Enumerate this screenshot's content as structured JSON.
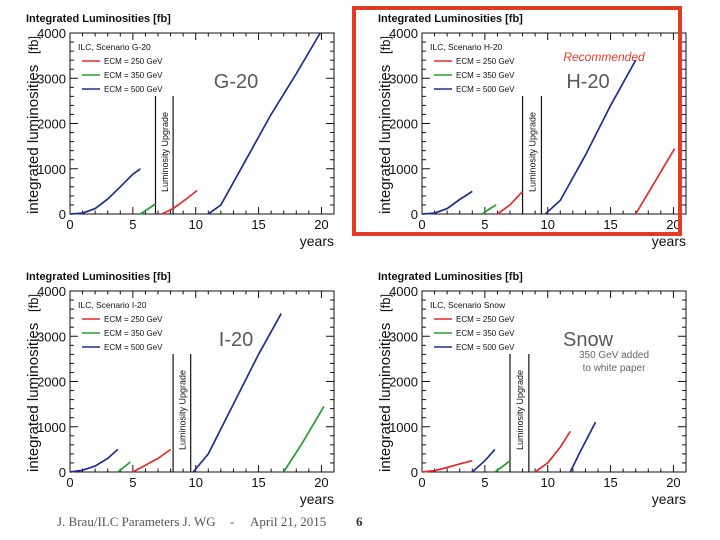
{
  "colors": {
    "ecm250": "#e8282a",
    "ecm350": "#22a12c",
    "ecm500": "#1f2f8f",
    "highlight": "#e33b24",
    "big_label": "#5a5a5a"
  },
  "footer": {
    "author": "J. Brau/ILC Parameters J. WG",
    "separator": "-",
    "date": "April 21, 2015",
    "page": "6"
  },
  "chart_data": [
    {
      "id": "g20",
      "type": "line",
      "title": "Integrated Luminosities  [fb]",
      "unit": "[fb]",
      "scenario": "ILC, Scenario G-20",
      "label": "G-20",
      "xlabel": "years",
      "ylabel": "integrated luminosities",
      "xlim": [
        0,
        21
      ],
      "ylim": [
        0,
        4000
      ],
      "xticks": [
        0,
        5,
        10,
        15,
        20
      ],
      "yticks": [
        0,
        1000,
        2000,
        3000,
        4000
      ],
      "upgrade_label": "Luminosity Upgrade",
      "upgrade_x": [
        6.8,
        8.2
      ],
      "legend": [
        "ECM = 250 GeV",
        "ECM = 350 GeV",
        "ECM = 500 GeV"
      ],
      "series": [
        {
          "name": "ECM = 500 GeV",
          "x": [
            0,
            1,
            2,
            3,
            4,
            5,
            5.6
          ],
          "y": [
            0,
            20,
            120,
            330,
            600,
            880,
            1000
          ]
        },
        {
          "name": "ECM = 350 GeV",
          "x": [
            5.6,
            6.2,
            6.8
          ],
          "y": [
            0,
            110,
            220
          ]
        },
        {
          "name": "ECM = 250 GeV",
          "x": [
            7.3,
            8.2,
            9.2,
            10.1
          ],
          "y": [
            0,
            120,
            320,
            520
          ]
        },
        {
          "name": "ECM = 500 GeV",
          "x": [
            11.0,
            12.0,
            14.0,
            16.0,
            18.0,
            19.9
          ],
          "y": [
            0,
            200,
            1200,
            2200,
            3100,
            4000
          ]
        }
      ]
    },
    {
      "id": "h20",
      "type": "line",
      "title": "Integrated Luminosities  [fb]",
      "unit": "[fb]",
      "scenario": "ILC, Scenario H-20",
      "label": "H-20",
      "annotation": "Recommended",
      "xlabel": "years",
      "ylabel": "integrated luminosities",
      "xlim": [
        0,
        21
      ],
      "ylim": [
        0,
        4000
      ],
      "xticks": [
        0,
        5,
        10,
        15,
        20
      ],
      "yticks": [
        0,
        1000,
        2000,
        3000,
        4000
      ],
      "upgrade_label": "Luminosity Upgrade",
      "upgrade_x": [
        8.0,
        9.5
      ],
      "legend": [
        "ECM = 250 GeV",
        "ECM = 350 GeV",
        "ECM = 500 GeV"
      ],
      "series": [
        {
          "name": "ECM = 500 GeV",
          "x": [
            0,
            1,
            2,
            3,
            4
          ],
          "y": [
            0,
            20,
            120,
            320,
            500
          ]
        },
        {
          "name": "ECM = 350 GeV",
          "x": [
            4.8,
            5.3,
            5.9
          ],
          "y": [
            0,
            100,
            200
          ]
        },
        {
          "name": "ECM = 250 GeV",
          "x": [
            6.0,
            7.0,
            8.0
          ],
          "y": [
            0,
            200,
            500
          ]
        },
        {
          "name": "ECM = 500 GeV",
          "x": [
            9.8,
            11.0,
            13.0,
            15.0,
            17.0
          ],
          "y": [
            0,
            300,
            1300,
            2400,
            3400
          ]
        },
        {
          "name": "ECM = 250 GeV",
          "x": [
            17.0,
            18.5,
            20.1
          ],
          "y": [
            0,
            700,
            1450
          ]
        }
      ]
    },
    {
      "id": "i20",
      "type": "line",
      "title": "Integrated Luminosities  [fb]",
      "unit": "[fb]",
      "scenario": "ILC, Scenario I-20",
      "label": "I-20",
      "xlabel": "years",
      "ylabel": "integrated luminosities",
      "xlim": [
        0,
        21
      ],
      "ylim": [
        0,
        4000
      ],
      "xticks": [
        0,
        5,
        10,
        15,
        20
      ],
      "yticks": [
        0,
        1000,
        2000,
        3000,
        4000
      ],
      "upgrade_label": "Luminosity Upgrade",
      "upgrade_x": [
        8.2,
        9.6
      ],
      "legend": [
        "ECM = 250 GeV",
        "ECM = 350 GeV",
        "ECM = 500 GeV"
      ],
      "series": [
        {
          "name": "ECM = 500 GeV",
          "x": [
            0,
            1,
            2,
            3,
            3.8
          ],
          "y": [
            0,
            40,
            130,
            300,
            500
          ]
        },
        {
          "name": "ECM = 350 GeV",
          "x": [
            3.8,
            4.3,
            4.8
          ],
          "y": [
            0,
            110,
            220
          ]
        },
        {
          "name": "ECM = 250 GeV",
          "x": [
            5.0,
            6.0,
            7.0,
            8.0
          ],
          "y": [
            0,
            150,
            300,
            500
          ]
        },
        {
          "name": "ECM = 500 GeV",
          "x": [
            9.8,
            11.0,
            13.0,
            15.0,
            16.8
          ],
          "y": [
            0,
            400,
            1500,
            2600,
            3500
          ]
        },
        {
          "name": "ECM = 350 GeV",
          "x": [
            17.0,
            18.5,
            20.2
          ],
          "y": [
            0,
            650,
            1450
          ]
        }
      ]
    },
    {
      "id": "snow",
      "type": "line",
      "title": "Integrated Luminosities  [fb]",
      "unit": "[fb]",
      "scenario": "ILC, Scenario Snow",
      "label": "Snow",
      "annotation": "350 GeV added\nto white paper",
      "xlabel": "years",
      "ylabel": "integrated luminosities",
      "xlim": [
        0,
        21
      ],
      "ylim": [
        0,
        4000
      ],
      "xticks": [
        0,
        5,
        10,
        15,
        20
      ],
      "yticks": [
        0,
        1000,
        2000,
        3000,
        4000
      ],
      "upgrade_label": "Luminosity Upgrade",
      "upgrade_x": [
        7.0,
        8.5
      ],
      "legend": [
        "ECM = 250 GeV",
        "ECM = 350 GeV",
        "ECM = 500 GeV"
      ],
      "series": [
        {
          "name": "ECM = 250 GeV",
          "x": [
            0,
            1,
            2,
            3,
            4
          ],
          "y": [
            0,
            30,
            100,
            180,
            250
          ]
        },
        {
          "name": "ECM = 500 GeV",
          "x": [
            4.0,
            5.0,
            5.8
          ],
          "y": [
            0,
            250,
            500
          ]
        },
        {
          "name": "ECM = 350 GeV",
          "x": [
            5.8,
            6.4,
            7.0
          ],
          "y": [
            0,
            120,
            250
          ]
        },
        {
          "name": "ECM = 250 GeV",
          "x": [
            9.0,
            10.0,
            11.0,
            11.8
          ],
          "y": [
            0,
            200,
            550,
            900
          ]
        },
        {
          "name": "ECM = 500 GeV",
          "x": [
            11.8,
            12.5,
            13.8
          ],
          "y": [
            0,
            400,
            1100
          ]
        }
      ]
    }
  ]
}
